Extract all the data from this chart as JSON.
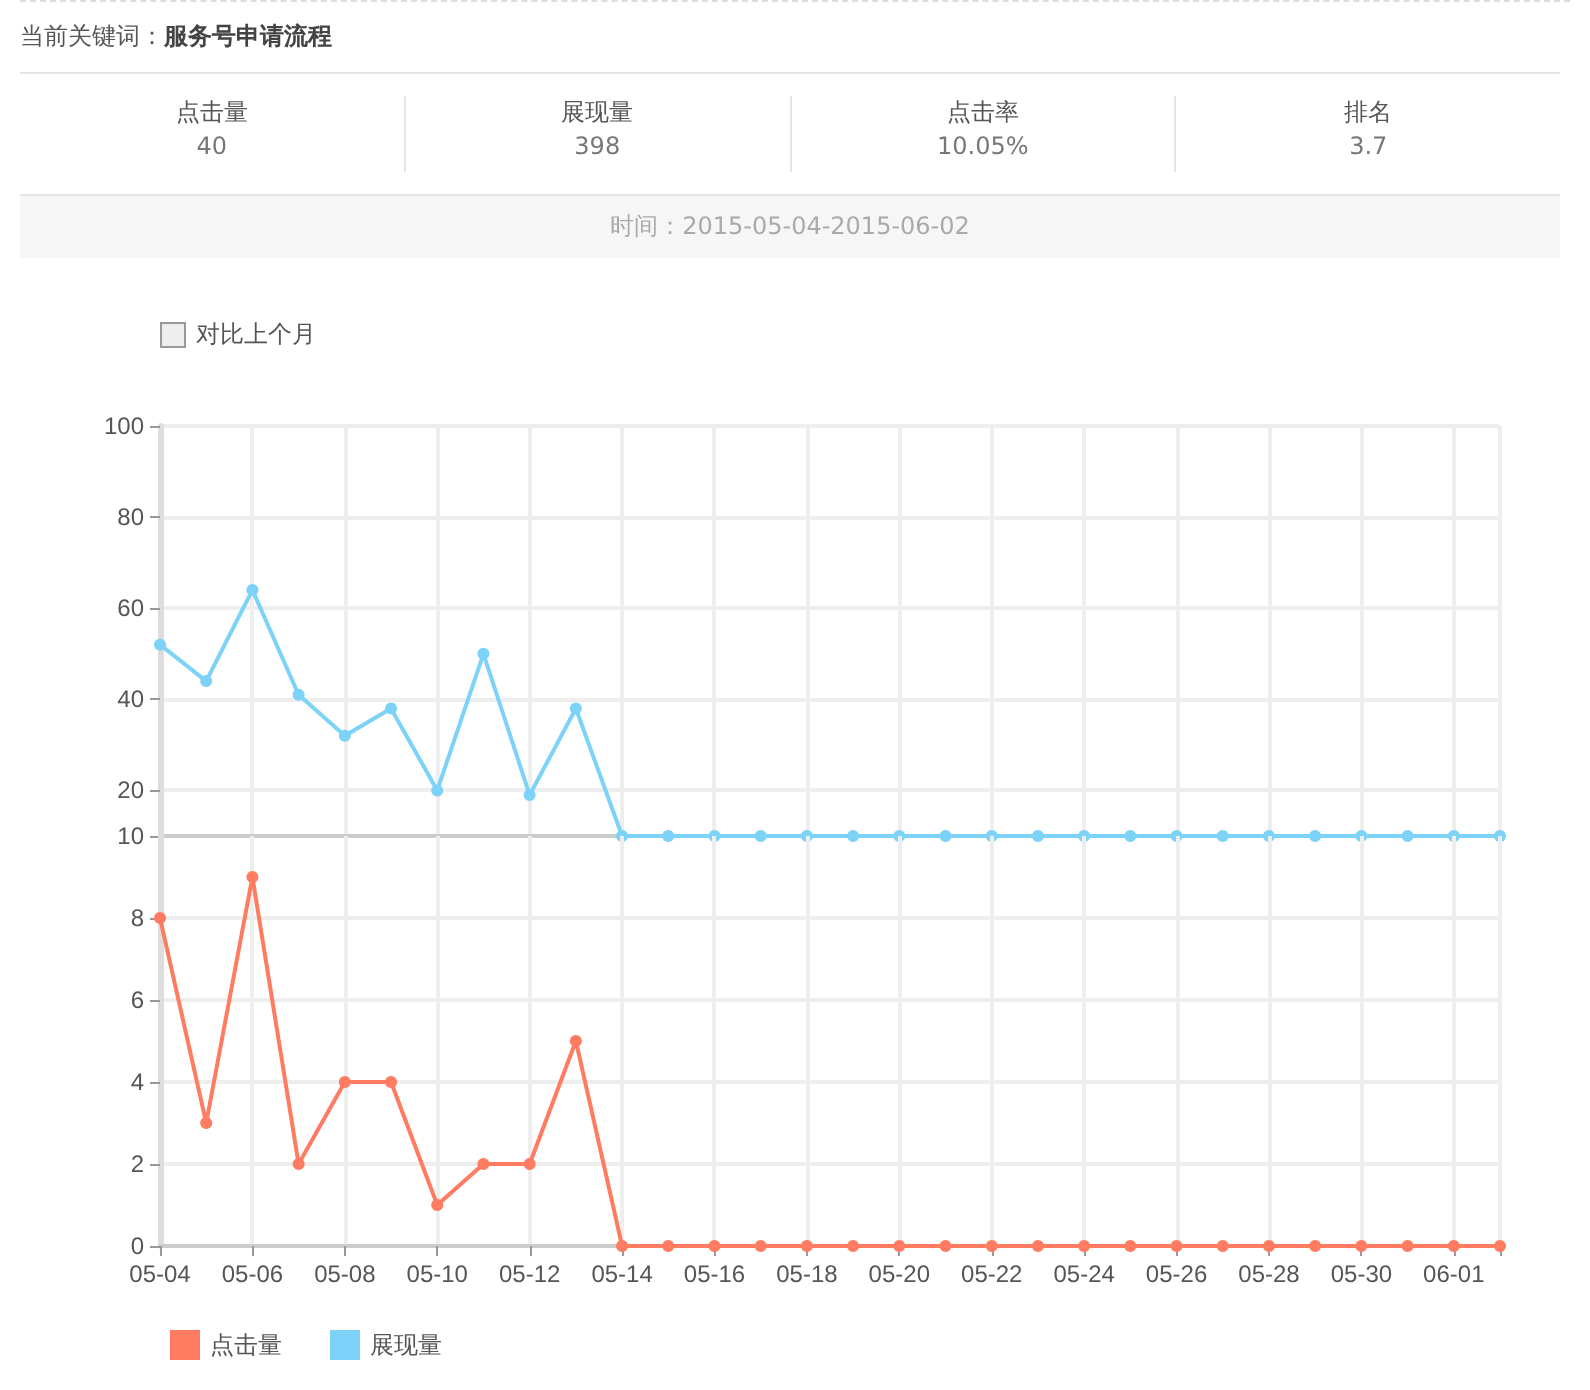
{
  "chart_data": [
    {
      "type": "other",
      "title": "当前关键词：服务号申请流程",
      "subtitle": "时间：2015-05-04-2015-06-02",
      "categories": [
        "点击量",
        "展现量",
        "点击率",
        "排名"
      ],
      "value_labels": [
        "40",
        "398",
        "10.05%",
        "3.7"
      ],
      "annotations": [
        "对比上个月"
      ]
    },
    {
      "type": "line",
      "categories": [
        null,
        null,
        null,
        null,
        null,
        null,
        null,
        null,
        null,
        null,
        null,
        null,
        null,
        null,
        null,
        null,
        null,
        null,
        null,
        null,
        null,
        null,
        null,
        null,
        null,
        null,
        null,
        null,
        null,
        null
      ],
      "series": [
        {
          "name": "展现量",
          "color": "#7dd3f7",
          "values": [
            52,
            44,
            64,
            41,
            32,
            38,
            20,
            50,
            19,
            38,
            10,
            10,
            10,
            10,
            10,
            10,
            10,
            10,
            10,
            10,
            10,
            10,
            10,
            10,
            10,
            10,
            10,
            10,
            10,
            10
          ]
        }
      ],
      "ylim": [
        10,
        100
      ],
      "yticks": [
        10,
        20,
        40,
        60,
        80,
        100
      ],
      "grid": true,
      "marker": "circle",
      "legend": "bottom",
      "tick_labels": "y"
    },
    {
      "type": "line",
      "categories": [
        "05-04",
        null,
        "05-06",
        null,
        "05-08",
        null,
        "05-10",
        null,
        "05-12",
        null,
        "05-14",
        null,
        "05-16",
        null,
        "05-18",
        null,
        "05-20",
        null,
        "05-22",
        null,
        "05-24",
        null,
        "05-26",
        null,
        "05-28",
        null,
        "05-30",
        null,
        "06-01",
        null
      ],
      "series": [
        {
          "name": "点击量",
          "color": "#ff7c63",
          "values": [
            8,
            3,
            9,
            2,
            4,
            4,
            1,
            2,
            2,
            5,
            0,
            0,
            0,
            0,
            0,
            0,
            0,
            0,
            0,
            0,
            0,
            0,
            0,
            0,
            0,
            0,
            0,
            0,
            0,
            0
          ]
        }
      ],
      "ylim": [
        0,
        10
      ],
      "yticks": [
        0,
        2,
        4,
        6,
        8
      ],
      "grid": true,
      "marker": "circle",
      "legend": "bottom"
    }
  ]
}
